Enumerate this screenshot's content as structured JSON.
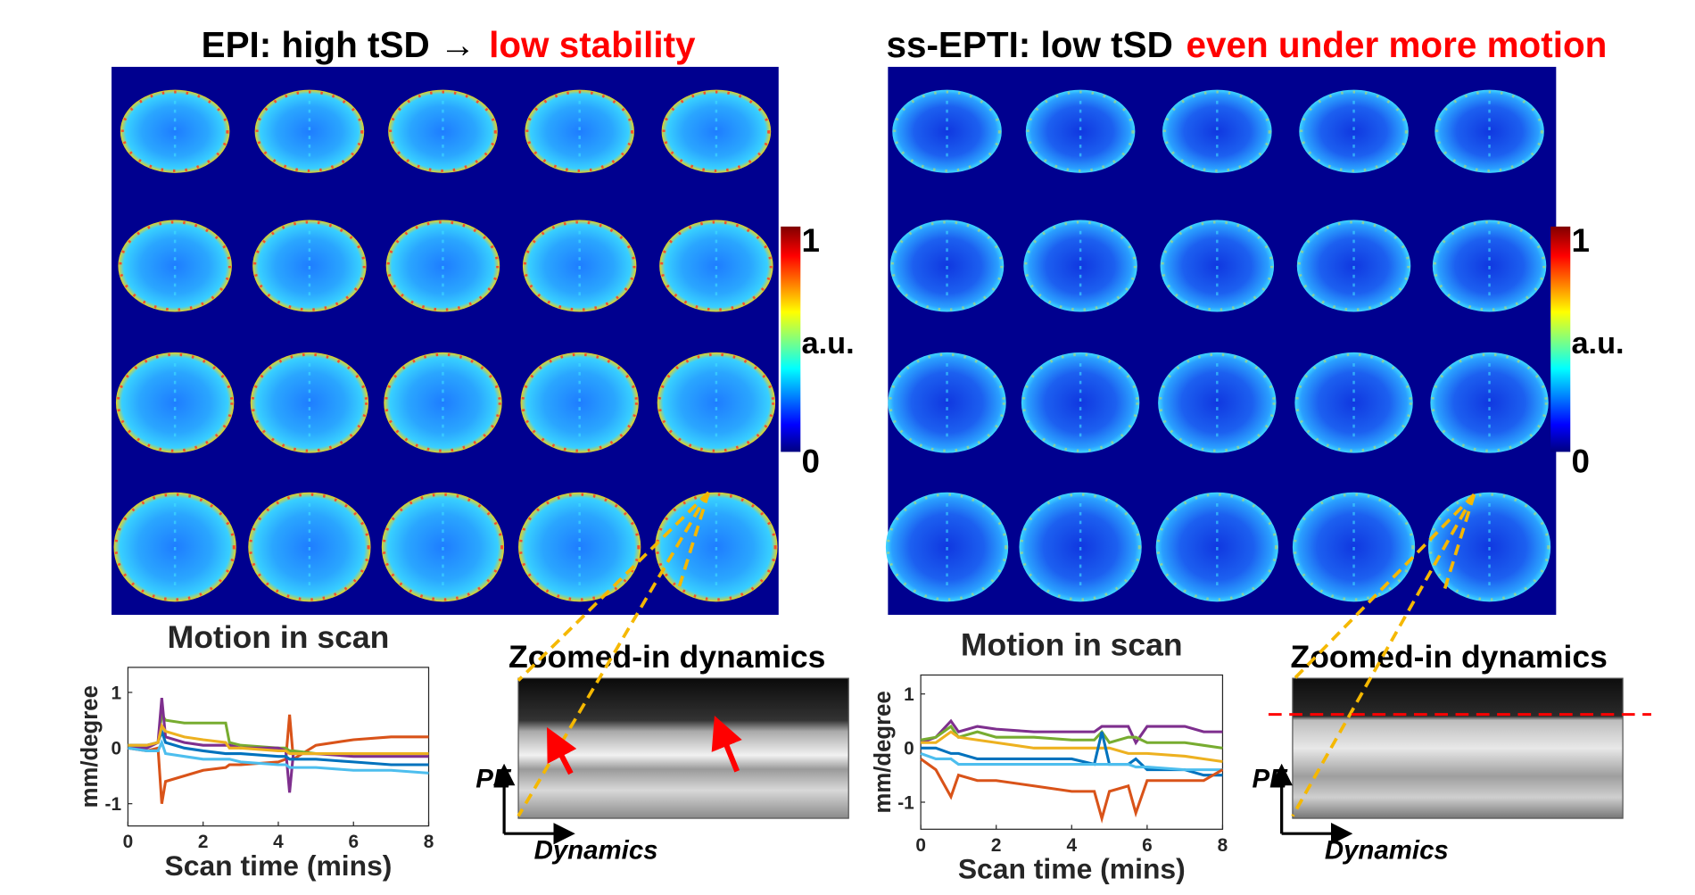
{
  "panels": [
    {
      "title": {
        "black": "EPI: high tSD →",
        "red": "low stability"
      },
      "colorbar": {
        "max": 1,
        "unit": "a.u.",
        "min": 0
      },
      "zoom": {
        "title": "Zoomed-in dynamics",
        "y_label": "PE",
        "x_label": "Dynamics"
      }
    },
    {
      "title": {
        "black": "ss-EPTI: low tSD",
        "red": "even under more motion"
      },
      "colorbar": {
        "max": 1,
        "unit": "a.u.",
        "min": 0
      },
      "zoom": {
        "title": "Zoomed-in dynamics",
        "y_label": "PE",
        "x_label": "Dynamics"
      }
    }
  ],
  "chart_data": [
    {
      "type": "line",
      "title": "Motion in scan",
      "x_label": "Scan time (mins)",
      "y_label": "mm/degree",
      "x": [
        0,
        0.5,
        0.8,
        0.9,
        1,
        1.5,
        2,
        2.6,
        2.7,
        3,
        4,
        4.2,
        4.3,
        4.4,
        5,
        6,
        7,
        8
      ],
      "xlim": [
        0,
        8
      ],
      "xticks": [
        0,
        2,
        4,
        6,
        8
      ],
      "ylim": [
        -1.4,
        1.45
      ],
      "yticks": [
        -1,
        0,
        1
      ],
      "series": [
        {
          "color": "#d95319",
          "values": [
            0,
            -0.05,
            0,
            -1.0,
            -0.6,
            -0.5,
            -0.4,
            -0.35,
            -0.3,
            -0.3,
            -0.25,
            -0.2,
            0.6,
            -0.2,
            0.05,
            0.15,
            0.2,
            0.2
          ]
        },
        {
          "color": "#77ac30",
          "values": [
            0.05,
            0.05,
            0.1,
            0.6,
            0.5,
            0.45,
            0.45,
            0.45,
            0.1,
            0.05,
            0,
            0,
            -0.05,
            -0.05,
            -0.1,
            -0.1,
            -0.1,
            -0.1
          ]
        },
        {
          "color": "#7e2f8e",
          "values": [
            0,
            0,
            0.1,
            0.9,
            0.2,
            0.1,
            0.05,
            0.05,
            0.05,
            0,
            0,
            -0.05,
            -0.8,
            -0.1,
            -0.1,
            -0.15,
            -0.15,
            -0.15
          ]
        },
        {
          "color": "#0072bd",
          "values": [
            0.05,
            0.05,
            0.1,
            0.3,
            0.1,
            0,
            -0.05,
            -0.1,
            -0.1,
            -0.1,
            -0.15,
            -0.15,
            -0.2,
            -0.2,
            -0.2,
            -0.25,
            -0.3,
            -0.3
          ]
        },
        {
          "color": "#4dbeee",
          "values": [
            0,
            -0.05,
            -0.05,
            0.1,
            -0.1,
            -0.15,
            -0.2,
            -0.2,
            -0.2,
            -0.25,
            -0.3,
            -0.3,
            -0.35,
            -0.35,
            -0.35,
            -0.4,
            -0.4,
            -0.45
          ]
        },
        {
          "color": "#edb120",
          "values": [
            0.05,
            0.05,
            0.1,
            0.4,
            0.3,
            0.2,
            0.15,
            0.1,
            0,
            0,
            -0.05,
            -0.05,
            -0.1,
            -0.1,
            -0.1,
            -0.1,
            -0.1,
            -0.1
          ]
        }
      ]
    },
    {
      "type": "line",
      "title": "Motion in scan",
      "x_label": "Scan time (mins)",
      "y_label": "mm/degree",
      "x": [
        0,
        0.4,
        0.8,
        1,
        1.5,
        2,
        3,
        4,
        4.6,
        4.8,
        5,
        5.5,
        5.7,
        6,
        7,
        7.5,
        8
      ],
      "xlim": [
        0,
        8
      ],
      "xticks": [
        0,
        2,
        4,
        6,
        8
      ],
      "ylim": [
        -1.5,
        1.35
      ],
      "yticks": [
        -1,
        0,
        1
      ],
      "series": [
        {
          "color": "#7e2f8e",
          "values": [
            0.1,
            0.2,
            0.5,
            0.3,
            0.4,
            0.35,
            0.3,
            0.3,
            0.3,
            0.4,
            0.4,
            0.4,
            0.1,
            0.4,
            0.4,
            0.3,
            0.3
          ]
        },
        {
          "color": "#77ac30",
          "values": [
            0.15,
            0.2,
            0.4,
            0.2,
            0.3,
            0.2,
            0.2,
            0.15,
            0.15,
            0.3,
            0.1,
            0.2,
            0.2,
            0.1,
            0.1,
            0.05,
            0
          ]
        },
        {
          "color": "#edb120",
          "values": [
            0.1,
            0.1,
            0.3,
            0.2,
            0.15,
            0.1,
            0,
            0,
            0,
            0,
            0,
            -0.1,
            -0.1,
            -0.1,
            -0.15,
            -0.2,
            -0.25
          ]
        },
        {
          "color": "#0072bd",
          "values": [
            0,
            0,
            -0.1,
            -0.1,
            -0.2,
            -0.2,
            -0.2,
            -0.2,
            -0.3,
            0.3,
            -0.3,
            -0.3,
            -0.2,
            -0.4,
            -0.4,
            -0.5,
            -0.5
          ]
        },
        {
          "color": "#4dbeee",
          "values": [
            -0.1,
            -0.2,
            -0.2,
            -0.3,
            -0.3,
            -0.3,
            -0.3,
            -0.3,
            -0.3,
            -0.3,
            -0.3,
            -0.3,
            -0.35,
            -0.35,
            -0.4,
            -0.4,
            -0.4
          ]
        },
        {
          "color": "#d95319",
          "values": [
            -0.2,
            -0.4,
            -0.9,
            -0.5,
            -0.6,
            -0.6,
            -0.7,
            -0.8,
            -0.8,
            -1.3,
            -0.8,
            -0.7,
            -1.2,
            -0.6,
            -0.6,
            -0.6,
            -0.4
          ]
        }
      ]
    }
  ]
}
